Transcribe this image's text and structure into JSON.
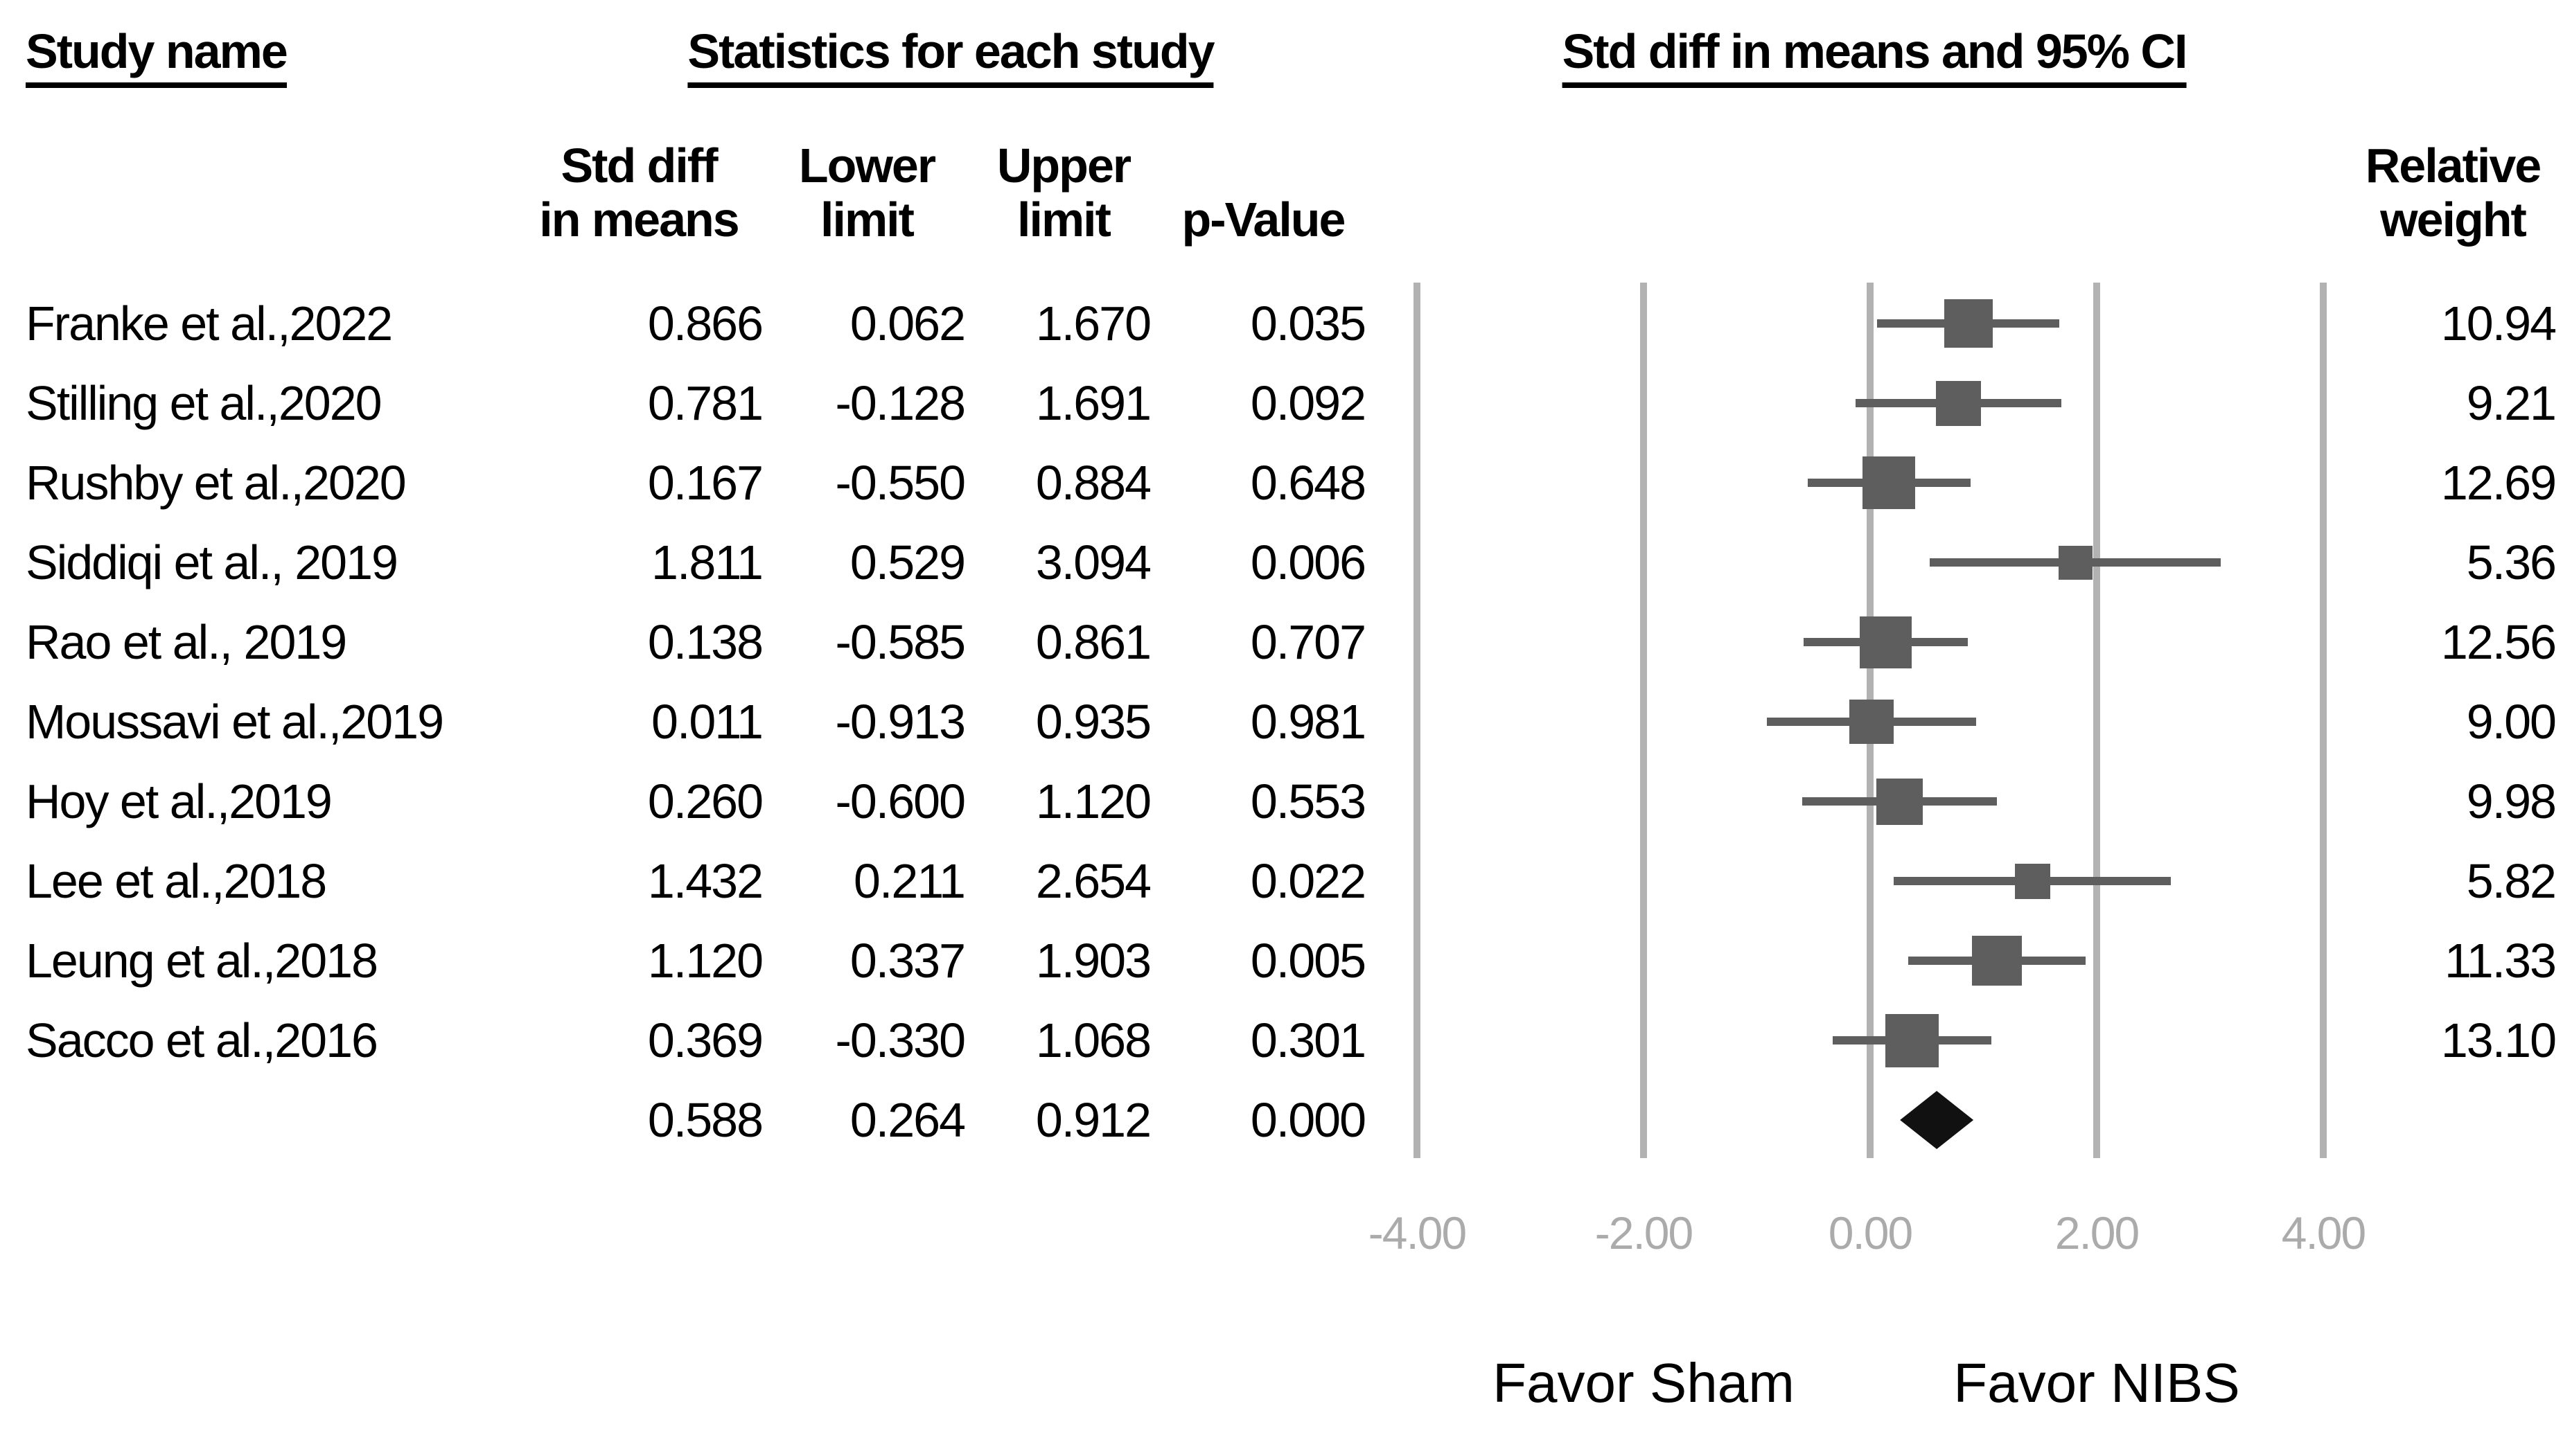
{
  "headers": {
    "study_name": "Study name",
    "statistics": "Statistics for each study"
  },
  "column_headers": {
    "std_diff": [
      "Std diff",
      "in means"
    ],
    "lower": [
      "Lower",
      "limit"
    ],
    "upper": [
      "Upper",
      "limit"
    ],
    "p_value": [
      "",
      "p-Value"
    ],
    "relative_weight": [
      "Relative",
      "weight"
    ]
  },
  "colors": {
    "text": "#000000",
    "background": "#ffffff",
    "marker": "#5e5e5e",
    "ci_line": "#5e5e5e",
    "gridline": "#b2b2b2",
    "axis_label": "#ababab",
    "diamond": "#111111"
  },
  "chart_data": {
    "type": "forest",
    "title": "Std diff in means and 95% CI",
    "effect_measure": "Std diff in means",
    "x_ticks": [
      -4,
      -2,
      0,
      2,
      4
    ],
    "x_tick_labels": [
      "-4.00",
      "-2.00",
      "0.00",
      "2.00",
      "4.00"
    ],
    "xlim": [
      -4,
      4
    ],
    "favor_left": "Favor Sham",
    "favor_right": "Favor NIBS",
    "studies": [
      {
        "name": "Franke et al.,2022",
        "std_diff": 0.866,
        "lower": 0.062,
        "upper": 1.67,
        "p_value": 0.035,
        "relative_weight": 10.94
      },
      {
        "name": "Stilling et al.,2020",
        "std_diff": 0.781,
        "lower": -0.128,
        "upper": 1.691,
        "p_value": 0.092,
        "relative_weight": 9.21
      },
      {
        "name": "Rushby et al.,2020",
        "std_diff": 0.167,
        "lower": -0.55,
        "upper": 0.884,
        "p_value": 0.648,
        "relative_weight": 12.69
      },
      {
        "name": "Siddiqi et al., 2019",
        "std_diff": 1.811,
        "lower": 0.529,
        "upper": 3.094,
        "p_value": 0.006,
        "relative_weight": 5.36
      },
      {
        "name": "Rao et al., 2019",
        "std_diff": 0.138,
        "lower": -0.585,
        "upper": 0.861,
        "p_value": 0.707,
        "relative_weight": 12.56
      },
      {
        "name": "Moussavi et al.,2019",
        "std_diff": 0.011,
        "lower": -0.913,
        "upper": 0.935,
        "p_value": 0.981,
        "relative_weight": 9.0
      },
      {
        "name": "Hoy et al.,2019",
        "std_diff": 0.26,
        "lower": -0.6,
        "upper": 1.12,
        "p_value": 0.553,
        "relative_weight": 9.98
      },
      {
        "name": "Lee et al.,2018",
        "std_diff": 1.432,
        "lower": 0.211,
        "upper": 2.654,
        "p_value": 0.022,
        "relative_weight": 5.82
      },
      {
        "name": "Leung et al.,2018",
        "std_diff": 1.12,
        "lower": 0.337,
        "upper": 1.903,
        "p_value": 0.005,
        "relative_weight": 11.33
      },
      {
        "name": "Sacco et al.,2016",
        "std_diff": 0.369,
        "lower": -0.33,
        "upper": 1.068,
        "p_value": 0.301,
        "relative_weight": 13.1
      }
    ],
    "overall": {
      "std_diff": 0.588,
      "lower": 0.264,
      "upper": 0.912,
      "p_value": 0.0
    }
  }
}
